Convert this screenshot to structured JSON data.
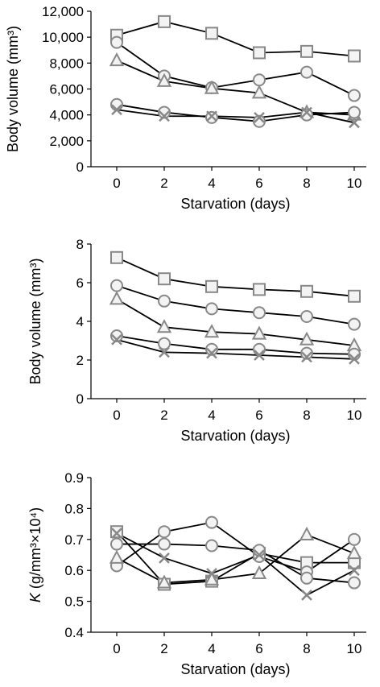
{
  "chart_data": [
    {
      "type": "line",
      "xlabel": "Starvation (days)",
      "ylabel": "Body volume (mm³)",
      "x": [
        0,
        2,
        4,
        6,
        8,
        10
      ],
      "xticks": [
        "0",
        "2",
        "4",
        "6",
        "8",
        "10"
      ],
      "ylim": [
        0,
        12000
      ],
      "yticks": [
        "0",
        "2,000",
        "4,000",
        "6,000",
        "8,000",
        "10,000",
        "12,000"
      ],
      "grid": false,
      "series": [
        {
          "marker": "square",
          "values": [
            10150,
            11200,
            10300,
            8800,
            8900,
            8550
          ]
        },
        {
          "marker": "circle",
          "values": [
            9600,
            7000,
            6100,
            6700,
            7300,
            5500
          ]
        },
        {
          "marker": "triangle",
          "values": [
            8200,
            6600,
            6050,
            5700,
            4200,
            4000
          ]
        },
        {
          "marker": "circle",
          "values": [
            4800,
            4200,
            3800,
            3500,
            4000,
            4200
          ]
        },
        {
          "marker": "cross",
          "values": [
            4400,
            3900,
            3900,
            3800,
            4200,
            3400
          ]
        }
      ]
    },
    {
      "type": "line",
      "xlabel": "Starvation (days)",
      "ylabel": "Body volume (mm³)",
      "x": [
        0,
        2,
        4,
        6,
        8,
        10
      ],
      "xticks": [
        "0",
        "2",
        "4",
        "6",
        "8",
        "10"
      ],
      "ylim": [
        0,
        8
      ],
      "yticks": [
        "0",
        "2",
        "4",
        "6",
        "8"
      ],
      "grid": false,
      "series": [
        {
          "marker": "square",
          "values": [
            7.3,
            6.2,
            5.8,
            5.65,
            5.55,
            5.3
          ]
        },
        {
          "marker": "circle",
          "values": [
            5.85,
            5.05,
            4.65,
            4.45,
            4.25,
            3.85
          ]
        },
        {
          "marker": "triangle",
          "values": [
            5.15,
            3.7,
            3.45,
            3.35,
            3.05,
            2.75
          ]
        },
        {
          "marker": "circle",
          "values": [
            3.25,
            2.85,
            2.55,
            2.55,
            2.35,
            2.3
          ]
        },
        {
          "marker": "cross",
          "values": [
            3.05,
            2.4,
            2.35,
            2.25,
            2.15,
            2.05
          ]
        }
      ]
    },
    {
      "type": "line",
      "xlabel": "Starvation (days)",
      "ylabel_italic": "K",
      "ylabel_rest": " (g/mm³×10⁴)",
      "x": [
        0,
        2,
        4,
        6,
        8,
        10
      ],
      "xticks": [
        "0",
        "2",
        "4",
        "6",
        "8",
        "10"
      ],
      "ylim": [
        0.4,
        0.9
      ],
      "yticks": [
        "0.4",
        "0.5",
        "0.6",
        "0.7",
        "0.8",
        "0.9"
      ],
      "grid": false,
      "series": [
        {
          "marker": "square",
          "values": [
            0.725,
            0.555,
            0.565,
            0.655,
            0.625,
            0.625
          ]
        },
        {
          "marker": "circle",
          "values": [
            0.615,
            0.725,
            0.755,
            0.645,
            0.595,
            0.7
          ]
        },
        {
          "marker": "circle",
          "values": [
            0.685,
            0.685,
            0.68,
            0.665,
            0.575,
            0.56
          ]
        },
        {
          "marker": "triangle",
          "values": [
            0.64,
            0.56,
            0.57,
            0.59,
            0.715,
            0.655
          ]
        },
        {
          "marker": "cross",
          "values": [
            0.72,
            0.64,
            0.59,
            0.65,
            0.52,
            0.6
          ]
        }
      ]
    }
  ]
}
